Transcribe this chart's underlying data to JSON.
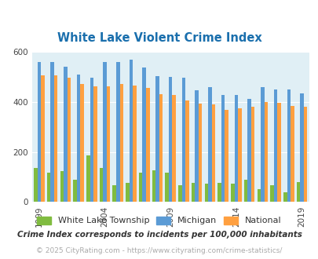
{
  "title": "White Lake Violent Crime Index",
  "years": [
    1999,
    2000,
    2001,
    2002,
    2003,
    2004,
    2005,
    2006,
    2007,
    2008,
    2009,
    2010,
    2011,
    2012,
    2013,
    2014,
    2015,
    2016,
    2017,
    2018,
    2019
  ],
  "white_lake": [
    135,
    118,
    125,
    88,
    185,
    135,
    68,
    78,
    118,
    128,
    118,
    68,
    78,
    72,
    78,
    72,
    88,
    50,
    68,
    40,
    80
  ],
  "michigan": [
    558,
    558,
    542,
    510,
    495,
    558,
    558,
    570,
    538,
    502,
    500,
    495,
    445,
    458,
    428,
    428,
    412,
    460,
    450,
    448,
    435
  ],
  "national": [
    505,
    505,
    498,
    470,
    462,
    462,
    470,
    465,
    455,
    430,
    428,
    405,
    393,
    390,
    368,
    375,
    382,
    400,
    397,
    383,
    380
  ],
  "colors": {
    "white_lake": "#80bc40",
    "michigan": "#5b9bd5",
    "national": "#ffa040"
  },
  "bg_color": "#e0eff5",
  "ylim": [
    0,
    600
  ],
  "yticks": [
    0,
    200,
    400,
    600
  ],
  "xtick_labels": [
    "1999",
    "2004",
    "2009",
    "2014",
    "2019"
  ],
  "xtick_positions": [
    0,
    5,
    10,
    15,
    20
  ],
  "footnote1": "Crime Index corresponds to incidents per 100,000 inhabitants",
  "footnote2": "© 2025 CityRating.com - https://www.cityrating.com/crime-statistics/",
  "legend_labels": [
    "White Lake Township",
    "Michigan",
    "National"
  ],
  "title_color": "#1a6fad",
  "footnote1_color": "#333333",
  "footnote2_color": "#aaaaaa"
}
